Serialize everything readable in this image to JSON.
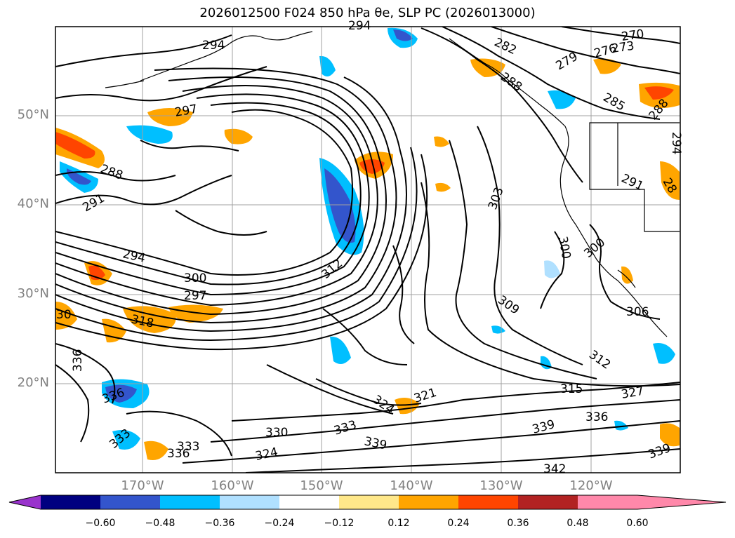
{
  "title": "2026012500 F024 850 hPa θe, SLP PC (2026013000)",
  "lat_labels": [
    "50°N",
    "40°N",
    "30°N",
    "20°N"
  ],
  "lon_labels": [
    "170°W",
    "160°W",
    "150°W",
    "140°W",
    "130°W",
    "120°W"
  ],
  "contour_labels": [
    {
      "text": "294"
    },
    {
      "text": "294"
    },
    {
      "text": "282"
    },
    {
      "text": "270"
    },
    {
      "text": "273"
    },
    {
      "text": "276"
    },
    {
      "text": "279"
    },
    {
      "text": "288"
    },
    {
      "text": "285"
    },
    {
      "text": "288"
    },
    {
      "text": "297"
    },
    {
      "text": "288"
    },
    {
      "text": "291"
    },
    {
      "text": "294"
    },
    {
      "text": "300"
    },
    {
      "text": "297"
    },
    {
      "text": "318"
    },
    {
      "text": "30"
    },
    {
      "text": "336"
    },
    {
      "text": "336"
    },
    {
      "text": "333"
    },
    {
      "text": "333"
    },
    {
      "text": "336"
    },
    {
      "text": "330"
    },
    {
      "text": "324"
    },
    {
      "text": "333"
    },
    {
      "text": "339"
    },
    {
      "text": "324"
    },
    {
      "text": "321"
    },
    {
      "text": "312"
    },
    {
      "text": "303"
    },
    {
      "text": "300"
    },
    {
      "text": "300"
    },
    {
      "text": "309"
    },
    {
      "text": "306"
    },
    {
      "text": "291"
    },
    {
      "text": "315"
    },
    {
      "text": "312"
    },
    {
      "text": "327"
    },
    {
      "text": "336"
    },
    {
      "text": "339"
    },
    {
      "text": "342"
    },
    {
      "text": "339"
    },
    {
      "text": "28"
    },
    {
      "text": "294"
    }
  ],
  "colorbar": {
    "ticks": [
      "−0.60",
      "−0.48",
      "−0.36",
      "−0.24",
      "−0.12",
      "0.12",
      "0.24",
      "0.36",
      "0.48",
      "0.60"
    ],
    "colors": [
      "#9933cc",
      "#000080",
      "#3355cc",
      "#00bfff",
      "#b0e0ff",
      "#ffffff",
      "#ffe88a",
      "#ffa500",
      "#ff4500",
      "#b22222",
      "#ff88aa"
    ]
  }
}
